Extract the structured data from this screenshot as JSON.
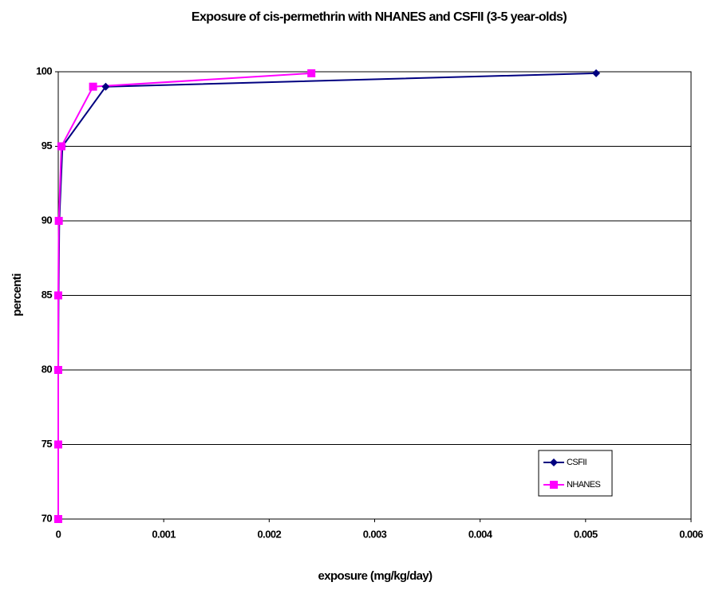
{
  "chart_data": {
    "type": "line",
    "title": "Exposure of cis-permethrin with NHANES and CSFII (3-5 year-olds)",
    "x_label": "exposure (mg/kg/day)",
    "y_label": "percenti",
    "series": [
      {
        "name": "CSFII",
        "color": "#000080",
        "marker": "diamond",
        "x": [
          0,
          0,
          0,
          3e-06,
          1e-05,
          4e-05,
          0.00045,
          0.0051
        ],
        "values": [
          70,
          75,
          80,
          85,
          90,
          95,
          99,
          99.9
        ]
      },
      {
        "name": "NHANES",
        "color": "#ff00ff",
        "marker": "square",
        "x": [
          0,
          0,
          0,
          0,
          5e-06,
          3e-05,
          0.00033,
          0.0024
        ],
        "values": [
          70,
          75,
          80,
          85,
          90,
          95,
          99,
          99.9
        ]
      }
    ],
    "xlim": [
      0,
      0.006
    ],
    "xticks": [
      0,
      0.001,
      0.002,
      0.003,
      0.004,
      0.005,
      0.006
    ],
    "ylim": [
      70,
      100
    ],
    "yticks": [
      70,
      75,
      80,
      85,
      90,
      95,
      100
    ],
    "grid": true,
    "legend": "lower right"
  }
}
